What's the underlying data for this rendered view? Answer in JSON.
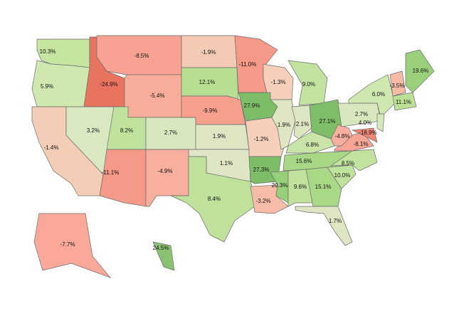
{
  "chart_data": {
    "type": "choropleth",
    "values": [
      10.3,
      5.9,
      -1.4,
      3.2,
      -24.9,
      -8.5,
      -5.4,
      8.2,
      -11.1,
      2.7,
      -4.9,
      -1.9,
      12.1,
      -9.9,
      1.9,
      1.1,
      8.4,
      -11.0,
      27.9,
      -1.2,
      27.3,
      -3.2,
      -1.3,
      1.9,
      9.0,
      2.1,
      27.1,
      6.8,
      15.6,
      20.3,
      9.6,
      15.1,
      1.7,
      10.0,
      8.5,
      -8.1,
      -4.8,
      2.7,
      6.0,
      -18.9,
      4.0,
      -3.5,
      19.6,
      11.1,
      -7.7,
      24.5
    ],
    "value_labels": [
      "10.3%",
      "5.9%",
      "-1.4%",
      "3.2%",
      "-24.9%",
      "-8.5%",
      "-5.4%",
      "8.2%",
      "-11.1%",
      "2.7%",
      "-4.9%",
      "-1.9%",
      "12.1%",
      "-9.9%",
      "1.9%",
      "1.1%",
      "8.4%",
      "-11.0%",
      "27.9%",
      "-1.2%",
      "27.3%",
      "-3.2%",
      "-1.3%",
      "1.9%",
      "9.0%",
      "2.1%",
      "27.1%",
      "6.8%",
      "15.6%",
      "20.3%",
      "9.6%",
      "15.1%",
      "1.7%",
      "10.0%",
      "8.5%",
      "-8.1%",
      "-4.8%",
      "2.7%",
      "6.0%",
      "-18.9%",
      "4.0%",
      "-3.5%",
      "19.6%",
      "11.1%",
      "-7.7%",
      "24.5%"
    ],
    "colors": [
      "#c6e5a0",
      "#cfe8b0",
      "#f4cdb7",
      "#d8e8c0",
      "#e8735e",
      "#f7a292",
      "#f8ad9b",
      "#c0e29c",
      "#f59a88",
      "#d9e7bf",
      "#f8af9d",
      "#f5cab4",
      "#b7de91",
      "#f69f8d",
      "#dde5c3",
      "#dee6c5",
      "#bfe19b",
      "#f59a88",
      "#7ebd68",
      "#f5cfb9",
      "#7ebd68",
      "#f7bca7",
      "#f5cfb9",
      "#dde5c3",
      "#c2e39f",
      "#dce6c2",
      "#7fbe69",
      "#c8e5a7",
      "#a8d885",
      "#98cf79",
      "#c0e29c",
      "#a9d886",
      "#dde5c3",
      "#bfe29c",
      "#c2e39f",
      "#f6a595",
      "#f8af9d",
      "#d9e7bf",
      "#cfe8b0",
      "#ee8672",
      "#d4e9b8",
      "#f7baa5",
      "#9bd07b",
      "#bbe096",
      "#f9a899",
      "#88c270"
    ]
  }
}
